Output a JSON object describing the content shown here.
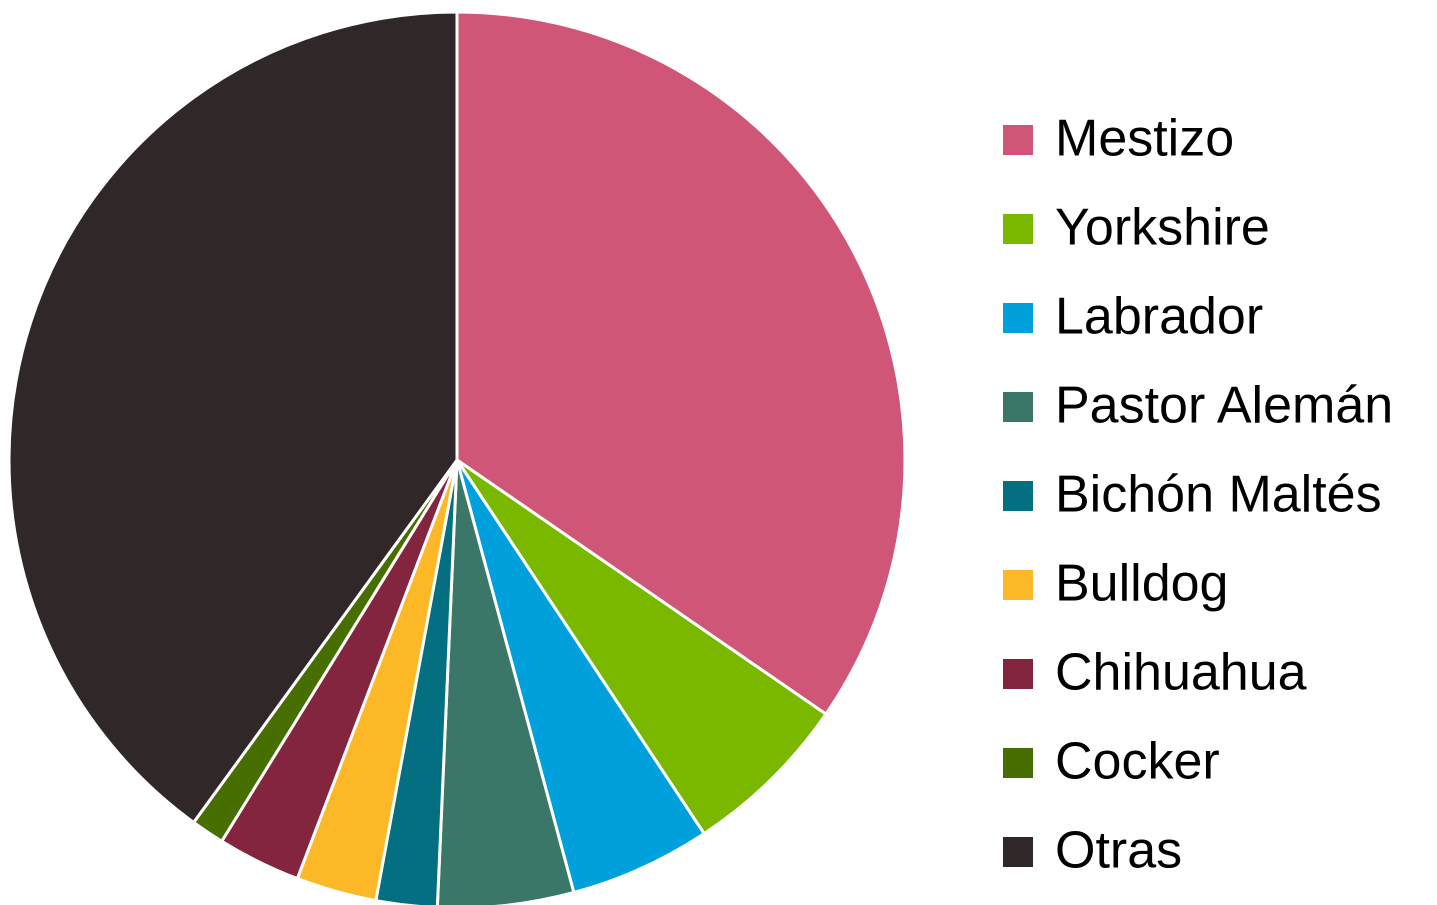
{
  "chart_data": {
    "type": "pie",
    "categories": [
      "Mestizo",
      "Yorkshire",
      "Labrador",
      "Pastor Alemán",
      "Bichón Maltés",
      "Bulldog",
      "Chihuahua",
      "Cocker",
      "Otras"
    ],
    "values": [
      34.6,
      6.1,
      5.1,
      4.9,
      2.2,
      2.9,
      3.0,
      1.2,
      40.0
    ],
    "colors": [
      "#d05677",
      "#7ab800",
      "#00a0dc",
      "#3b7768",
      "#036f80",
      "#fdb827",
      "#842540",
      "#466e00",
      "#302828"
    ],
    "legend": "right"
  }
}
